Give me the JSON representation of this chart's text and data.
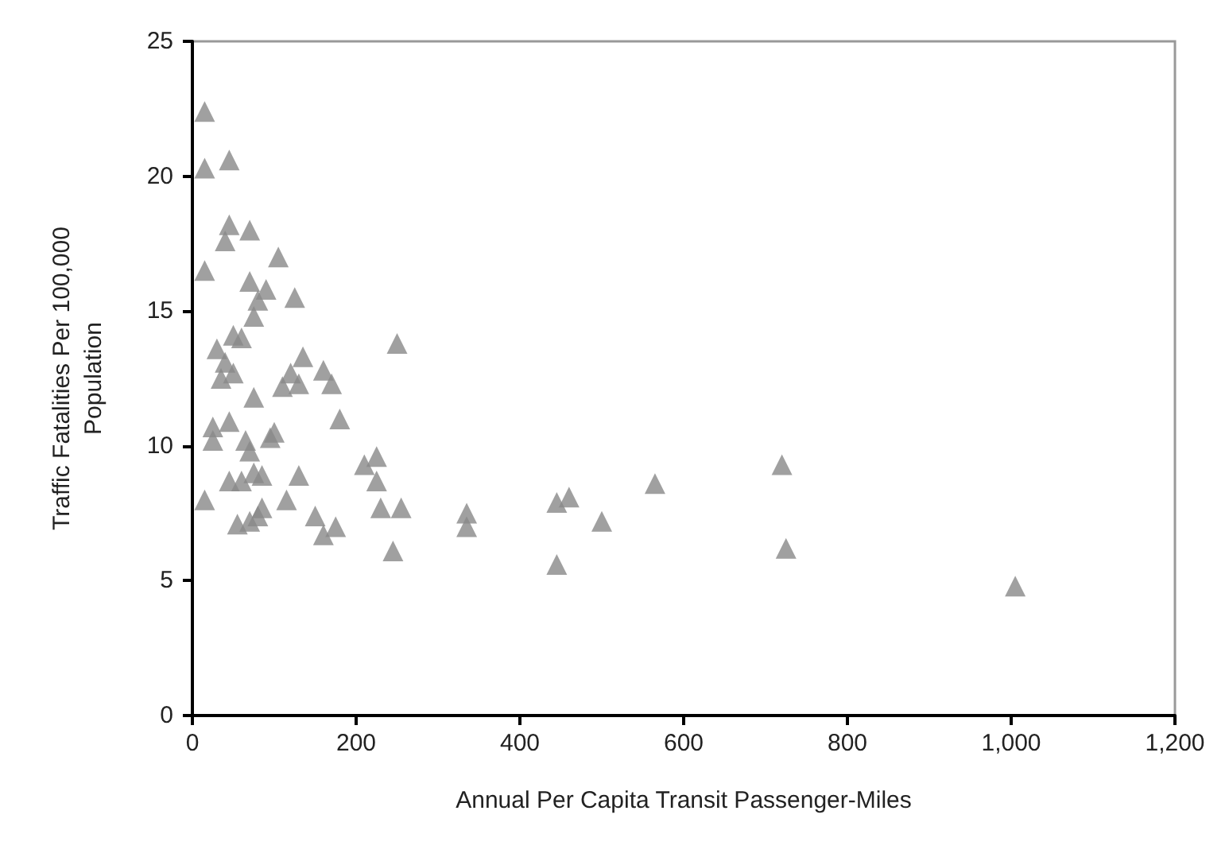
{
  "chart_data": {
    "type": "scatter",
    "xlabel": "Annual Per Capita Transit Passenger-Miles",
    "ylabel": "Traffic Fatalities Per 100,000\nPopulation",
    "marker": "triangle",
    "grid": false,
    "xlim": [
      0,
      1200
    ],
    "xticks": [
      0,
      200,
      400,
      600,
      800,
      {
        "value": 1000,
        "label": "1,000"
      },
      {
        "value": 1200,
        "label": "1,200"
      }
    ],
    "ylim": [
      0,
      25
    ],
    "yticks": [
      0,
      5,
      10,
      15,
      20,
      25
    ],
    "series": [
      {
        "color": "#888888",
        "x": [
          15,
          15,
          45,
          15,
          45,
          70,
          40,
          70,
          105,
          90,
          80,
          125,
          15,
          30,
          50,
          60,
          75,
          40,
          35,
          50,
          135,
          120,
          130,
          110,
          160,
          170,
          75,
          180,
          25,
          45,
          25,
          65,
          95,
          100,
          70,
          75,
          60,
          45,
          85,
          130,
          115,
          210,
          225,
          225,
          230,
          255,
          245,
          55,
          70,
          80,
          85,
          150,
          175,
          160,
          250,
          335,
          335,
          445,
          460,
          445,
          500,
          565,
          720,
          725,
          1005
        ],
        "values": [
          22.4,
          20.3,
          20.6,
          16.5,
          18.2,
          18.0,
          17.6,
          16.1,
          17.0,
          15.8,
          15.4,
          15.5,
          8.0,
          13.6,
          14.1,
          14.0,
          14.8,
          13.1,
          12.5,
          12.7,
          13.3,
          12.7,
          12.3,
          12.2,
          12.8,
          12.3,
          11.8,
          11.0,
          10.7,
          10.9,
          10.2,
          10.2,
          10.3,
          10.5,
          9.8,
          9.0,
          8.7,
          8.7,
          8.9,
          8.9,
          8.0,
          9.3,
          9.6,
          8.7,
          7.7,
          7.7,
          6.1,
          7.1,
          7.2,
          7.4,
          7.7,
          7.4,
          7.0,
          6.7,
          13.8,
          7.5,
          7.0,
          7.9,
          8.1,
          5.6,
          7.2,
          8.6,
          9.3,
          6.2,
          4.8
        ]
      }
    ]
  }
}
